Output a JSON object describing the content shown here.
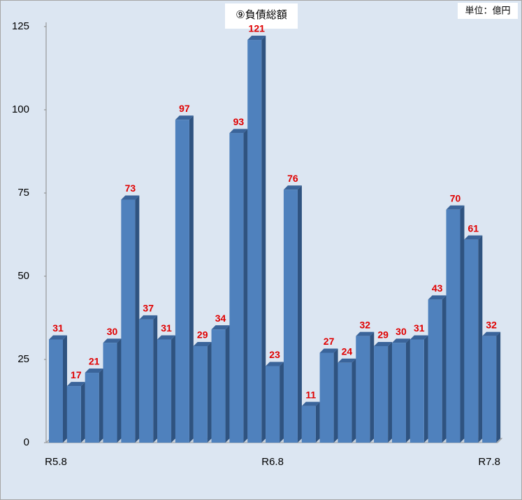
{
  "chart_data": {
    "type": "bar",
    "title": "⑨負債総額",
    "unit_label": "単位：億円",
    "categories": [
      "R5.8",
      null,
      null,
      null,
      null,
      null,
      null,
      null,
      null,
      null,
      null,
      null,
      "R6.8",
      null,
      null,
      null,
      null,
      null,
      null,
      null,
      null,
      null,
      null,
      null,
      "R7.8"
    ],
    "values": [
      31,
      17,
      21,
      30,
      73,
      37,
      31,
      97,
      29,
      34,
      93,
      121,
      23,
      76,
      11,
      27,
      24,
      32,
      29,
      30,
      31,
      43,
      70,
      61,
      32
    ],
    "color": "#4f81bd",
    "label_color": "#e00000",
    "ylim": [
      0,
      125
    ],
    "yticks": [
      0,
      25,
      50,
      75,
      100,
      125
    ]
  }
}
